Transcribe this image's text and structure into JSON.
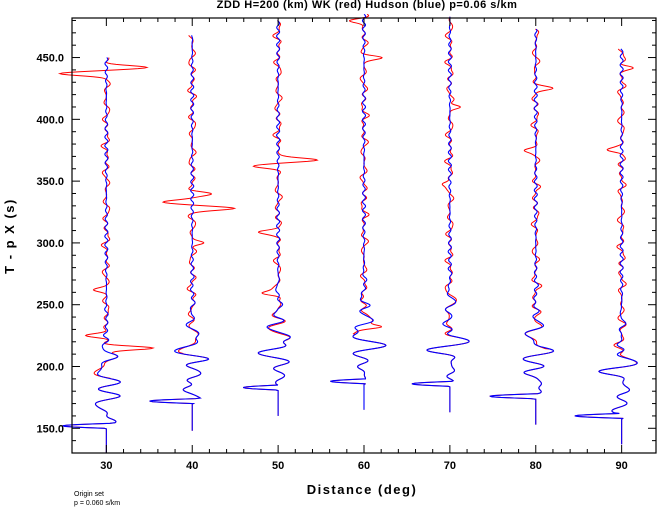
{
  "chart_data": {
    "type": "line",
    "title": "ZDD H=200 (km) WK (red) Hudson (blue) p=0.06 s/km",
    "xlabel": "Distance (deg)",
    "ylabel": "T - p X (s)",
    "xlim": [
      26,
      94
    ],
    "ylim": [
      130,
      482
    ],
    "x_ticks": [
      30,
      40,
      50,
      60,
      70,
      80,
      90
    ],
    "x_tick_labels": [
      "30",
      "40",
      "50",
      "60",
      "70",
      "80",
      "90"
    ],
    "y_ticks": [
      150,
      200,
      250,
      300,
      350,
      400,
      450
    ],
    "y_tick_labels": [
      "150.0",
      "200.0",
      "250.0",
      "300.0",
      "350.0",
      "400.0",
      "450.0"
    ],
    "grid": false,
    "series": [
      {
        "name": "WK",
        "color": "#ff0000"
      },
      {
        "name": "Hudson",
        "color": "#0000ff"
      }
    ],
    "traces": [
      {
        "distance": 30,
        "start": 130,
        "end": 450,
        "arrival": 150,
        "arrival_amp": 5.0,
        "wk_peaks": [
          {
            "t": 215,
            "a": 6.0
          },
          {
            "t": 225,
            "a": -2.5
          },
          {
            "t": 262,
            "a": -1.5
          },
          {
            "t": 437,
            "a": -5.0
          },
          {
            "t": 442,
            "a": 4.5
          }
        ]
      },
      {
        "distance": 40,
        "start": 148,
        "end": 468,
        "arrival": 170,
        "arrival_amp": 5.5,
        "wk_peaks": [
          {
            "t": 328,
            "a": 5.0
          },
          {
            "t": 333,
            "a": -3.5
          },
          {
            "t": 340,
            "a": 2.0
          },
          {
            "t": 300,
            "a": 1.5
          }
        ]
      },
      {
        "distance": 50,
        "start": 160,
        "end": 480,
        "arrival": 181,
        "arrival_amp": 4.0,
        "wk_peaks": [
          {
            "t": 367,
            "a": 5.0
          },
          {
            "t": 362,
            "a": -3.0
          },
          {
            "t": 259,
            "a": -2.0
          },
          {
            "t": 309,
            "a": -2.0
          }
        ]
      },
      {
        "distance": 60,
        "start": 165,
        "end": 485,
        "arrival": 186,
        "arrival_amp": 4.0,
        "wk_peaks": [
          {
            "t": 232,
            "a": 3.0
          },
          {
            "t": 450,
            "a": 2.0
          },
          {
            "t": 480,
            "a": -1.5
          }
        ]
      },
      {
        "distance": 70,
        "start": 163,
        "end": 483,
        "arrival": 184,
        "arrival_amp": 4.5,
        "wk_peaks": [
          {
            "t": 410,
            "a": 1.5
          },
          {
            "t": 348,
            "a": -1.0
          }
        ]
      },
      {
        "distance": 80,
        "start": 153,
        "end": 473,
        "arrival": 174,
        "arrival_amp": 5.0,
        "wk_peaks": [
          {
            "t": 425,
            "a": 1.5
          },
          {
            "t": 375,
            "a": -1.0
          }
        ]
      },
      {
        "distance": 90,
        "start": 137,
        "end": 457,
        "arrival": 158,
        "arrival_amp": 5.5,
        "wk_peaks": [
          {
            "t": 442,
            "a": 1.5
          },
          {
            "t": 375,
            "a": -1.5
          }
        ]
      }
    ],
    "footnotes": [
      "Origin set",
      "p = 0.060 s/km"
    ]
  }
}
